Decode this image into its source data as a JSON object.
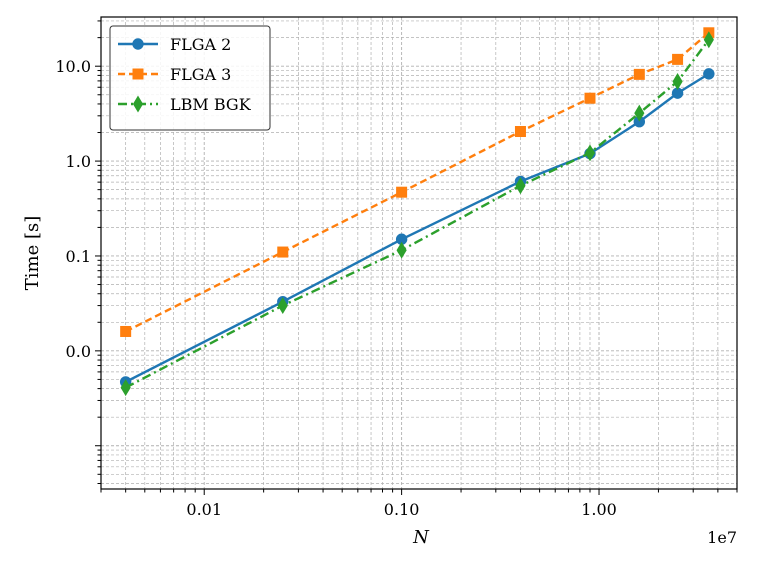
{
  "chart_data": {
    "type": "line",
    "xscale": "log",
    "yscale": "log",
    "xlabel": "N",
    "ylabel": "Time [s]",
    "x_multiplier_label": "1e7",
    "xlim": [
      30000,
      50000000
    ],
    "ylim": [
      0.00035,
      33
    ],
    "x_ticks": [
      {
        "value": 100000,
        "label": "0.01"
      },
      {
        "value": 1000000,
        "label": "0.10"
      },
      {
        "value": 10000000,
        "label": "1.00"
      }
    ],
    "y_ticks": [
      {
        "value": 0.01,
        "label": "0.0"
      },
      {
        "value": 0.1,
        "label": "0.1"
      },
      {
        "value": 1,
        "label": "1.0"
      },
      {
        "value": 10,
        "label": "10.0"
      }
    ],
    "grid": "both (major and minor, dashed)",
    "legend_position": "upper left",
    "series": [
      {
        "name": "FLGA 2",
        "color": "#1f77b4",
        "linestyle": "solid",
        "marker": "circle",
        "x": [
          40000,
          250000,
          1000000,
          4000000,
          9000000,
          16000000,
          25000000,
          36000000
        ],
        "y": [
          0.0047,
          0.033,
          0.15,
          0.61,
          1.2,
          2.6,
          5.2,
          8.3
        ]
      },
      {
        "name": "FLGA 3",
        "color": "#ff7f0e",
        "linestyle": "dashed",
        "marker": "square",
        "x": [
          40000,
          250000,
          1000000,
          4000000,
          9000000,
          16000000,
          25000000,
          36000000
        ],
        "y": [
          0.016,
          0.11,
          0.47,
          2.05,
          4.6,
          8.2,
          11.8,
          22.5
        ]
      },
      {
        "name": "LBM BGK",
        "color": "#2ca02c",
        "linestyle": "dashdot",
        "marker": "thin_diamond",
        "x": [
          40000,
          250000,
          1000000,
          4000000,
          9000000,
          16000000,
          25000000,
          36000000
        ],
        "y": [
          0.0041,
          0.03,
          0.115,
          0.55,
          1.22,
          3.2,
          6.9,
          19.0
        ]
      }
    ]
  }
}
